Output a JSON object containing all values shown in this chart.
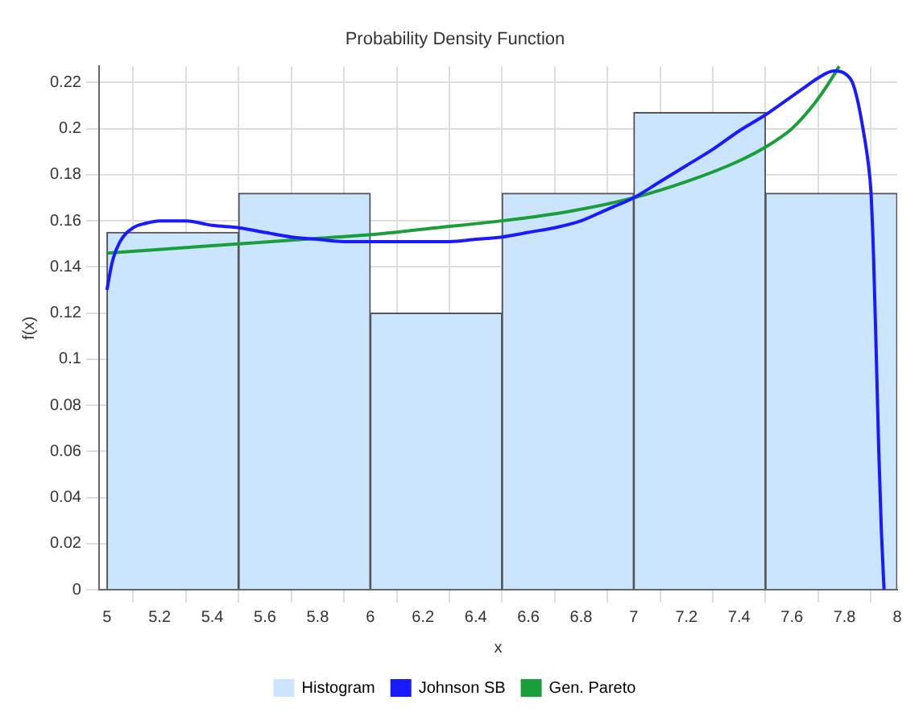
{
  "chart_data": {
    "type": "histogram",
    "title": "Probability Density Function",
    "xlabel": "x",
    "ylabel": "f(x)",
    "bins": [
      5,
      5.5,
      6,
      6.5,
      7,
      7.5,
      8
    ],
    "series": [
      {
        "name": "Histogram",
        "color": "#cce5ff",
        "values": [
          0.155,
          0.172,
          0.12,
          0.172,
          0.207,
          0.172
        ]
      },
      {
        "name": "Johnson SB",
        "type": "line",
        "color": "#1a1aff",
        "x": [
          5.0,
          5.02,
          5.05,
          5.1,
          5.15,
          5.2,
          5.25,
          5.3,
          5.4,
          5.5,
          5.6,
          5.7,
          5.8,
          5.9,
          6.0,
          6.1,
          6.2,
          6.3,
          6.4,
          6.5,
          6.6,
          6.7,
          6.8,
          6.9,
          7.0,
          7.1,
          7.2,
          7.3,
          7.4,
          7.5,
          7.6,
          7.65,
          7.7,
          7.76,
          7.8,
          7.83,
          7.85,
          7.87,
          7.89,
          7.9,
          7.91,
          7.92,
          7.93,
          7.94,
          7.95
        ],
        "values": [
          0.13,
          0.142,
          0.151,
          0.157,
          0.159,
          0.16,
          0.16,
          0.16,
          0.158,
          0.157,
          0.155,
          0.153,
          0.152,
          0.151,
          0.151,
          0.151,
          0.151,
          0.151,
          0.152,
          0.153,
          0.155,
          0.157,
          0.16,
          0.165,
          0.17,
          0.177,
          0.184,
          0.191,
          0.199,
          0.206,
          0.214,
          0.218,
          0.222,
          0.225,
          0.224,
          0.22,
          0.212,
          0.2,
          0.185,
          0.173,
          0.145,
          0.104,
          0.06,
          0.025,
          0
        ]
      },
      {
        "name": "Gen. Pareto",
        "type": "line",
        "color": "#1a9e3a",
        "x": [
          5.0,
          5.25,
          5.5,
          5.75,
          6.0,
          6.25,
          6.5,
          6.75,
          7.0,
          7.2,
          7.4,
          7.5,
          7.6,
          7.68,
          7.73,
          7.78
        ],
        "values": [
          0.146,
          0.148,
          0.15,
          0.152,
          0.154,
          0.157,
          0.16,
          0.164,
          0.17,
          0.177,
          0.186,
          0.192,
          0.2,
          0.21,
          0.218,
          0.227
        ]
      }
    ],
    "xlim": [
      4.97,
      8
    ],
    "xticks": [
      5,
      5.2,
      5.4,
      5.6,
      5.8,
      6,
      6.2,
      6.4,
      6.6,
      6.8,
      7,
      7.2,
      7.4,
      7.6,
      7.8,
      8
    ],
    "ylim": [
      0,
      0.227
    ],
    "yticks": [
      0,
      0.02,
      0.04,
      0.06,
      0.08,
      0.1,
      0.12,
      0.14,
      0.16,
      0.18,
      0.2,
      0.22
    ],
    "grid": true,
    "legend": "bottom"
  }
}
